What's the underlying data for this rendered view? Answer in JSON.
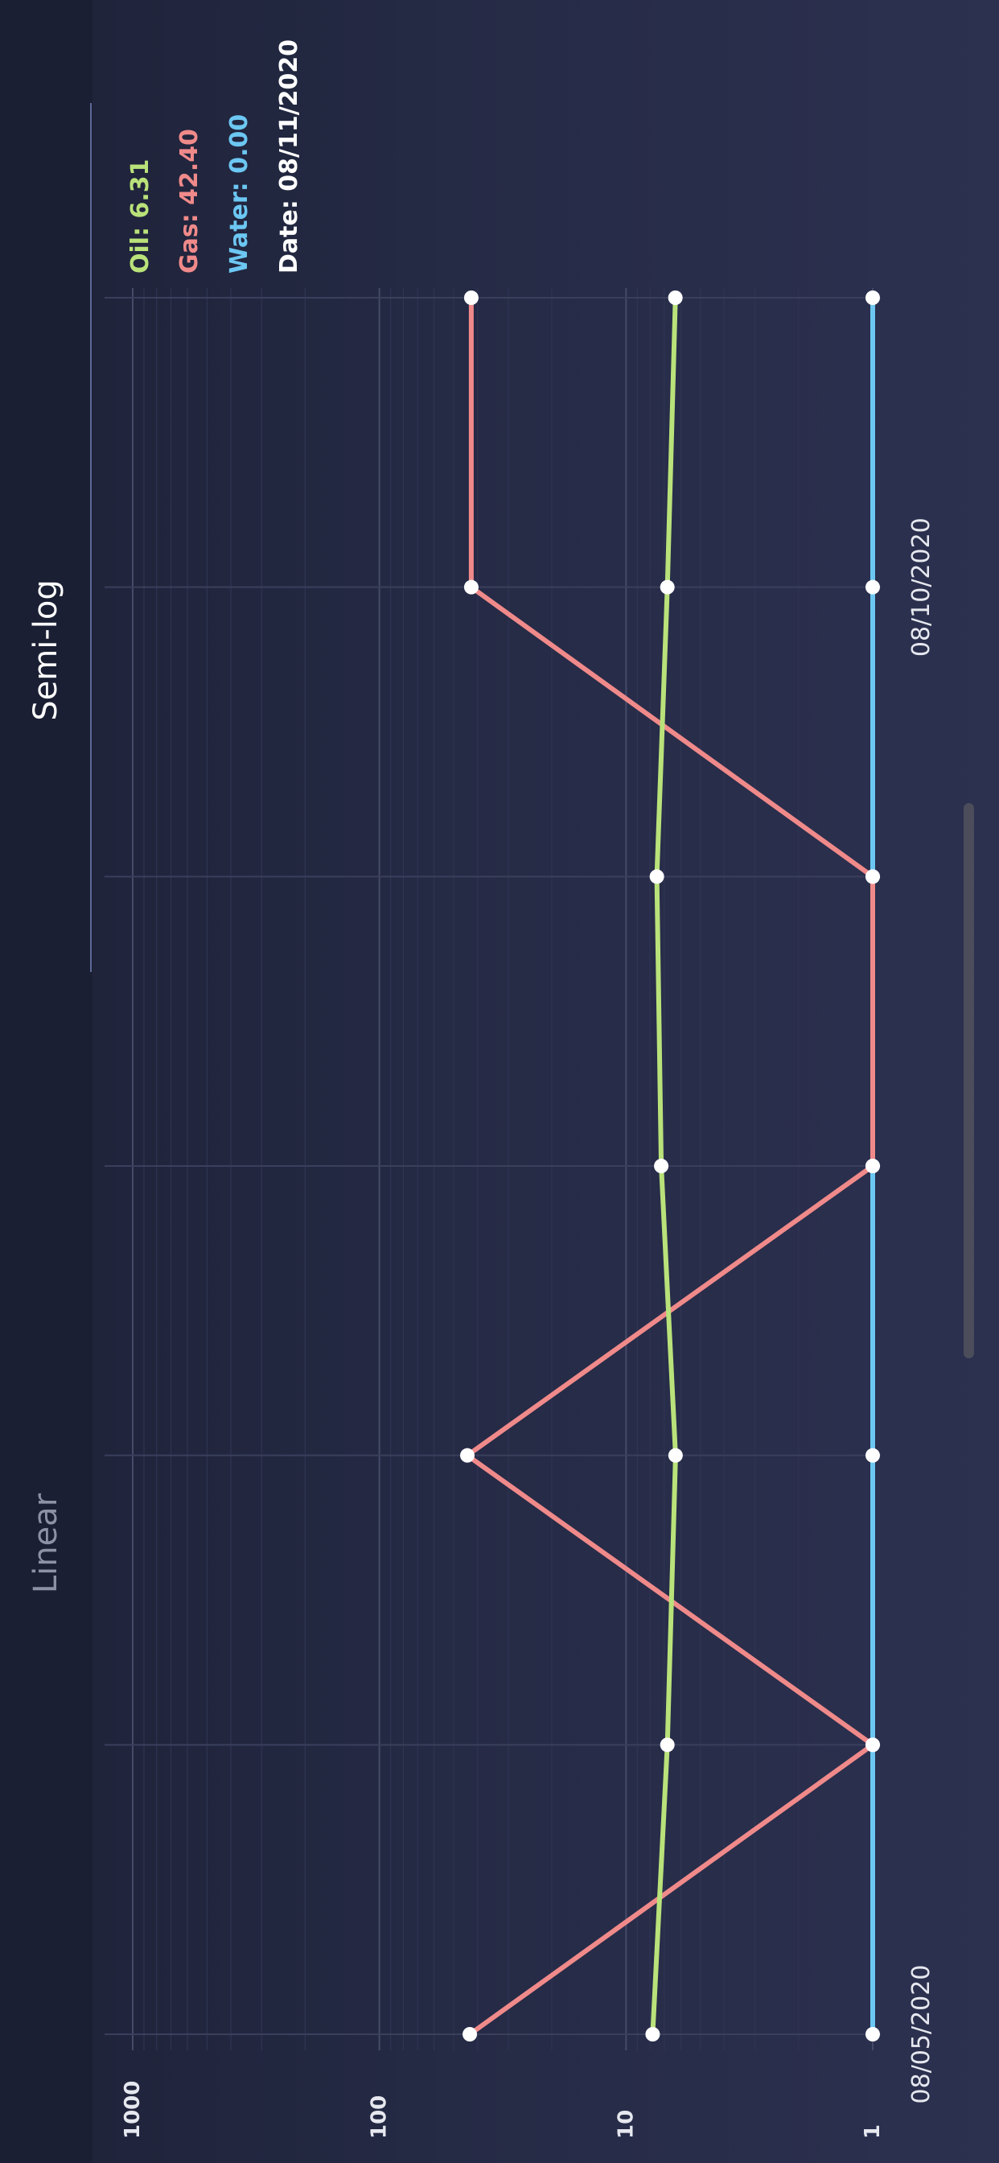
{
  "tabs": {
    "linear_label": "Linear",
    "semilog_label": "Semi-log",
    "active": "Semi-log"
  },
  "readout": {
    "oil": "Oil: 6.31",
    "gas": "Gas: 42.40",
    "water": "Water: 0.00",
    "date": "Date: 08/11/2020"
  },
  "colors": {
    "oil": "#b9e27a",
    "gas": "#f08a8a",
    "water": "#6cc7f2",
    "date": "#ffffff",
    "background": "#1b1f34",
    "grid": "#3a3f5c"
  },
  "chart_data": {
    "type": "line",
    "x": [
      "08/05/2020",
      "08/06/2020",
      "08/07/2020",
      "08/08/2020",
      "08/09/2020",
      "08/10/2020",
      "08/11/2020"
    ],
    "x_tick_labels": [
      "08/05/2020",
      "08/10/2020"
    ],
    "y_scale": "log",
    "ylim": [
      1,
      1000
    ],
    "y_ticks": [
      "1",
      "10",
      "100",
      "1000"
    ],
    "grid": true,
    "series": [
      {
        "name": "Oil",
        "values": [
          7.8,
          6.8,
          6.3,
          7.2,
          7.5,
          6.8,
          6.31
        ]
      },
      {
        "name": "Gas",
        "values": [
          43,
          1,
          44,
          1,
          1,
          42.4,
          42.4
        ]
      },
      {
        "name": "Water",
        "values": [
          1,
          1,
          1,
          1,
          1,
          1,
          1
        ]
      }
    ]
  }
}
